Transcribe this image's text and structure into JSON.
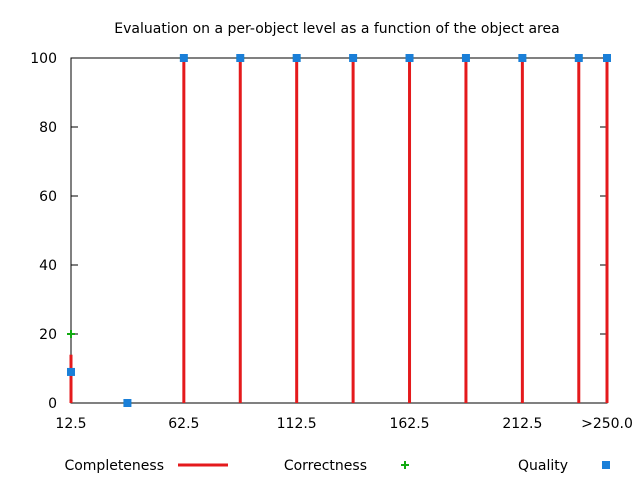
{
  "chart_data": {
    "type": "bar",
    "title": "Evaluation on a per-object level as a function of the object area",
    "xlabel": "",
    "ylabel": "",
    "x": [
      12.5,
      37.5,
      62.5,
      87.5,
      112.5,
      137.5,
      162.5,
      187.5,
      212.5,
      237.5,
      250.0
    ],
    "xlim": [
      12.5,
      250.0
    ],
    "ylim": [
      0,
      100
    ],
    "x_ticks": [
      {
        "value": 12.5,
        "label": "12.5"
      },
      {
        "value": 62.5,
        "label": "62.5"
      },
      {
        "value": 112.5,
        "label": "112.5"
      },
      {
        "value": 162.5,
        "label": "162.5"
      },
      {
        "value": 212.5,
        "label": "212.5"
      },
      {
        "value": 250.0,
        "label": ">250.0"
      }
    ],
    "y_ticks": [
      0,
      20,
      40,
      60,
      80,
      100
    ],
    "grid": false,
    "legend_position": "bottom",
    "series": [
      {
        "name": "Completeness",
        "style": "impulses",
        "color": "#e41a1c",
        "values": [
          14,
          0,
          100,
          100,
          100,
          100,
          100,
          100,
          100,
          100,
          100
        ]
      },
      {
        "name": "Correctness",
        "style": "points",
        "marker": "plus",
        "color": "#11aa11",
        "values": [
          20,
          0,
          100,
          100,
          100,
          100,
          100,
          100,
          100,
          100,
          100
        ]
      },
      {
        "name": "Quality",
        "style": "points",
        "marker": "square",
        "color": "#1a7fd8",
        "values": [
          9,
          0,
          100,
          100,
          100,
          100,
          100,
          100,
          100,
          100,
          100
        ]
      }
    ]
  }
}
